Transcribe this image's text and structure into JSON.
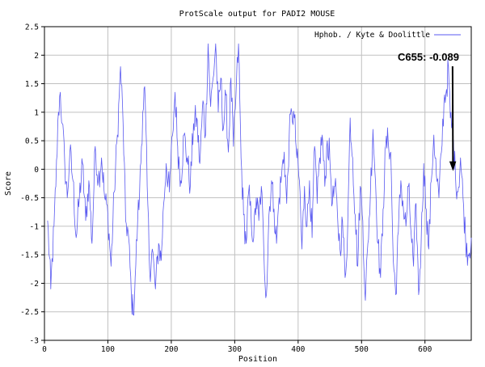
{
  "chart_data": {
    "type": "line",
    "title": "ProtScale output for PADI2 MOUSE",
    "xlabel": "Position",
    "ylabel": "Score",
    "xlim": [
      0,
      673
    ],
    "ylim": [
      -3,
      2.5
    ],
    "x_ticks": [
      0,
      100,
      200,
      300,
      400,
      500,
      600
    ],
    "x_tick_labels": [
      "0",
      "100",
      "200",
      "300",
      "400",
      "500",
      "600"
    ],
    "y_ticks": [
      2.5,
      2,
      1.5,
      1,
      0.5,
      0,
      -0.5,
      -1,
      -1.5,
      -2,
      -2.5,
      -3
    ],
    "y_tick_labels": [
      "2.5",
      "2",
      "1.5",
      "1",
      "0.5",
      "0",
      "-0.5",
      "-1",
      "-1.5",
      "-2",
      "-2.5",
      "-3"
    ],
    "grid": true,
    "legend_position": "top-right",
    "series": [
      {
        "name": "Hphob. / Kyte & Doolittle",
        "color": "#5a5af0",
        "anchors": [
          [
            5,
            -0.9
          ],
          [
            10,
            -2.1
          ],
          [
            15,
            -1.0
          ],
          [
            18,
            -0.3
          ],
          [
            22,
            1.0
          ],
          [
            25,
            1.35
          ],
          [
            28,
            0.8
          ],
          [
            32,
            0.1
          ],
          [
            36,
            -0.5
          ],
          [
            40,
            0.3
          ],
          [
            45,
            -0.2
          ],
          [
            50,
            -1.2
          ],
          [
            55,
            -0.5
          ],
          [
            60,
            0.1
          ],
          [
            65,
            -0.9
          ],
          [
            70,
            -0.2
          ],
          [
            75,
            -1.3
          ],
          [
            80,
            0.4
          ],
          [
            85,
            -0.2
          ],
          [
            90,
            0.2
          ],
          [
            95,
            -0.5
          ],
          [
            100,
            -0.8
          ],
          [
            105,
            -1.7
          ],
          [
            110,
            -0.4
          ],
          [
            115,
            0.6
          ],
          [
            118,
            1.3
          ],
          [
            120,
            1.8
          ],
          [
            124,
            0.8
          ],
          [
            128,
            -0.9
          ],
          [
            132,
            -1.1
          ],
          [
            137,
            -2.2
          ],
          [
            140,
            -2.55
          ],
          [
            143,
            -1.9
          ],
          [
            147,
            -0.9
          ],
          [
            150,
            -0.4
          ],
          [
            155,
            1.0
          ],
          [
            158,
            1.45
          ],
          [
            162,
            -0.3
          ],
          [
            166,
            -1.8
          ],
          [
            170,
            -1.4
          ],
          [
            175,
            -2.1
          ],
          [
            180,
            -1.3
          ],
          [
            184,
            -1.6
          ],
          [
            188,
            -0.6
          ],
          [
            192,
            0.1
          ],
          [
            197,
            -0.4
          ],
          [
            202,
            0.6
          ],
          [
            206,
            1.35
          ],
          [
            210,
            0.4
          ],
          [
            215,
            -0.2
          ],
          [
            220,
            0.6
          ],
          [
            225,
            0.2
          ],
          [
            230,
            -0.3
          ],
          [
            235,
            0.8
          ],
          [
            240,
            0.9
          ],
          [
            245,
            0.1
          ],
          [
            250,
            1.2
          ],
          [
            254,
            0.6
          ],
          [
            258,
            2.2
          ],
          [
            262,
            1.1
          ],
          [
            266,
            1.6
          ],
          [
            270,
            2.2
          ],
          [
            274,
            1.0
          ],
          [
            278,
            1.6
          ],
          [
            282,
            0.7
          ],
          [
            286,
            1.3
          ],
          [
            290,
            0.3
          ],
          [
            294,
            1.6
          ],
          [
            298,
            0.4
          ],
          [
            302,
            1.3
          ],
          [
            306,
            2.2
          ],
          [
            310,
            0.2
          ],
          [
            314,
            -0.8
          ],
          [
            318,
            -1.3
          ],
          [
            322,
            -0.4
          ],
          [
            326,
            -0.9
          ],
          [
            330,
            -1.2
          ],
          [
            334,
            -0.5
          ],
          [
            338,
            -0.9
          ],
          [
            342,
            -0.3
          ],
          [
            346,
            -1.5
          ],
          [
            350,
            -2.2
          ],
          [
            354,
            -0.8
          ],
          [
            358,
            -0.2
          ],
          [
            362,
            -0.7
          ],
          [
            366,
            -1.3
          ],
          [
            370,
            -0.5
          ],
          [
            374,
            -0.1
          ],
          [
            378,
            0.3
          ],
          [
            382,
            -0.6
          ],
          [
            386,
            0.6
          ],
          [
            390,
            1.0
          ],
          [
            394,
            0.9
          ],
          [
            398,
            0.2
          ],
          [
            402,
            -0.2
          ],
          [
            406,
            -1.4
          ],
          [
            410,
            -0.3
          ],
          [
            414,
            -1.0
          ],
          [
            418,
            -0.2
          ],
          [
            422,
            -1.2
          ],
          [
            426,
            0.4
          ],
          [
            430,
            -0.6
          ],
          [
            434,
            0.2
          ],
          [
            438,
            0.6
          ],
          [
            442,
            -0.3
          ],
          [
            446,
            0.5
          ],
          [
            450,
            0.2
          ],
          [
            454,
            -0.6
          ],
          [
            458,
            -0.3
          ],
          [
            462,
            -0.8
          ],
          [
            466,
            -1.4
          ],
          [
            470,
            -0.9
          ],
          [
            474,
            -1.9
          ],
          [
            478,
            -1.1
          ],
          [
            482,
            0.9
          ],
          [
            486,
            0.2
          ],
          [
            490,
            -0.8
          ],
          [
            494,
            -1.7
          ],
          [
            498,
            -0.3
          ],
          [
            502,
            -0.9
          ],
          [
            506,
            -2.3
          ],
          [
            510,
            -1.3
          ],
          [
            514,
            -0.4
          ],
          [
            518,
            0.7
          ],
          [
            522,
            -0.2
          ],
          [
            526,
            -1.3
          ],
          [
            530,
            -1.9
          ],
          [
            534,
            -0.7
          ],
          [
            538,
            0.4
          ],
          [
            542,
            0.5
          ],
          [
            546,
            0.3
          ],
          [
            550,
            -1.6
          ],
          [
            554,
            -2.2
          ],
          [
            558,
            -1.1
          ],
          [
            562,
            -0.2
          ],
          [
            566,
            -0.7
          ],
          [
            570,
            -1.0
          ],
          [
            574,
            -0.3
          ],
          [
            578,
            -1.1
          ],
          [
            582,
            -1.7
          ],
          [
            586,
            -0.6
          ],
          [
            590,
            -2.2
          ],
          [
            594,
            -1.3
          ],
          [
            598,
            0.1
          ],
          [
            602,
            -0.7
          ],
          [
            606,
            -1.4
          ],
          [
            610,
            -0.2
          ],
          [
            614,
            0.6
          ],
          [
            618,
            -0.1
          ],
          [
            622,
            -0.5
          ],
          [
            626,
            0.3
          ],
          [
            630,
            1.2
          ],
          [
            634,
            1.4
          ],
          [
            637,
            1.8
          ],
          [
            640,
            0.9
          ],
          [
            644,
            0.6
          ],
          [
            648,
            -0.1
          ],
          [
            652,
            -0.4
          ],
          [
            656,
            0.2
          ],
          [
            660,
            -0.5
          ],
          [
            664,
            -1.2
          ],
          [
            668,
            -1.5
          ],
          [
            673,
            -1.2
          ]
        ]
      }
    ],
    "annotation": {
      "text": "C655: -0.089",
      "x": 655,
      "y": -0.089
    }
  }
}
